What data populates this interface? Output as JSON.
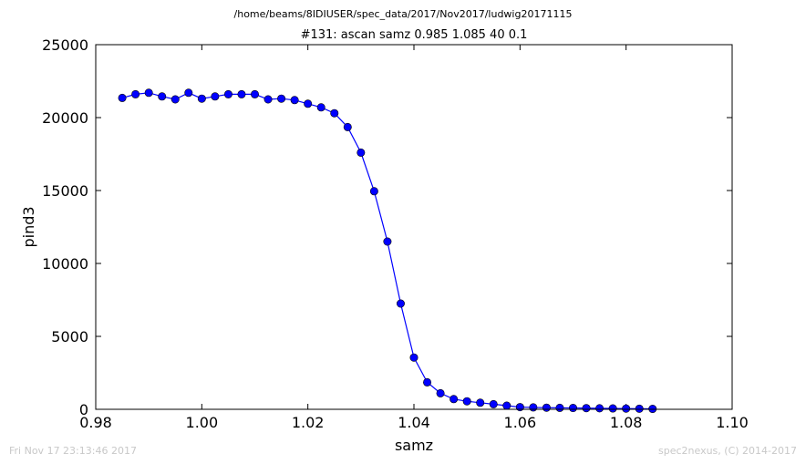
{
  "header": {
    "suptitle": "/home/beams/8IDIUSER/spec_data/2017/Nov2017/ludwig20171115",
    "title": "#131: ascan  samz 0.985 1.085  40 0.1"
  },
  "footer": {
    "timestamp": "Fri Nov 17 23:13:46 2017",
    "credit": "spec2nexus, (C) 2014-2017"
  },
  "chart_data": {
    "type": "line",
    "title": "#131: ascan  samz 0.985 1.085  40 0.1",
    "xlabel": "samz",
    "ylabel": "pind3",
    "xlim": [
      0.98,
      1.1
    ],
    "ylim": [
      0,
      25000
    ],
    "xticks": [
      0.98,
      1.0,
      1.02,
      1.04,
      1.06,
      1.08,
      1.1
    ],
    "xtick_labels": [
      "0.98",
      "1.00",
      "1.02",
      "1.04",
      "1.06",
      "1.08",
      "1.10"
    ],
    "yticks": [
      0,
      5000,
      10000,
      15000,
      20000,
      25000
    ],
    "ytick_labels": [
      "0",
      "5000",
      "10000",
      "15000",
      "20000",
      "25000"
    ],
    "grid": false,
    "legend": "none",
    "line_color": "#0000ff",
    "marker_color": "#0000ff",
    "series": [
      {
        "x": [
          0.985,
          0.9875,
          0.99,
          0.9925,
          0.995,
          0.9975,
          1.0,
          1.0025,
          1.005,
          1.0075,
          1.01,
          1.0125,
          1.015,
          1.0175,
          1.02,
          1.0225,
          1.025,
          1.0275,
          1.03,
          1.0325,
          1.035,
          1.0375,
          1.04,
          1.0425,
          1.045,
          1.0475,
          1.05,
          1.0525,
          1.055,
          1.0575,
          1.06,
          1.0625,
          1.065,
          1.0675,
          1.07,
          1.0725,
          1.075,
          1.0775,
          1.08,
          1.0825,
          1.085
        ],
        "values": [
          21350,
          21600,
          21700,
          21450,
          21250,
          21700,
          21300,
          21450,
          21600,
          21600,
          21600,
          21250,
          21300,
          21200,
          20950,
          20700,
          20300,
          19350,
          17600,
          14950,
          11500,
          7250,
          3550,
          1850,
          1100,
          700,
          550,
          450,
          350,
          250,
          150,
          130,
          110,
          100,
          90,
          80,
          70,
          60,
          50,
          40,
          30
        ]
      }
    ]
  }
}
